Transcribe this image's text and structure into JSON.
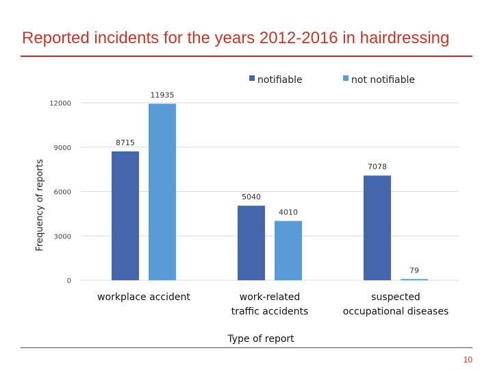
{
  "slide": {
    "title": "Reported incidents for the years 2012-2016 in hairdressing",
    "page_number": "10"
  },
  "chart_data": {
    "type": "bar",
    "categories": [
      "workplace accident",
      "work-related traffic accidents",
      "suspected occupational diseases"
    ],
    "series": [
      {
        "name": "notifiable",
        "color": "#4565ad",
        "values": [
          8715,
          5040,
          7078
        ]
      },
      {
        "name": "not notifiable",
        "color": "#5b9bd5",
        "values": [
          11935,
          4010,
          79
        ]
      }
    ],
    "ylabel": "Frequency of reports",
    "xlabel": "Type of report",
    "ylim": [
      0,
      12000
    ],
    "yticks": [
      0,
      3000,
      6000,
      9000,
      12000
    ],
    "grid": true,
    "legend_position": "top-right"
  }
}
